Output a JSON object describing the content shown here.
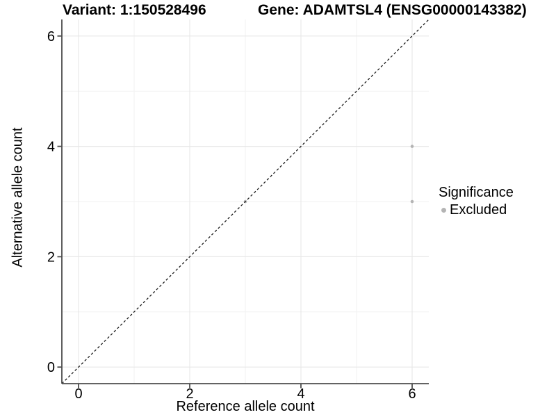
{
  "titles": {
    "variant": "Variant: 1:150528496",
    "gene": "Gene: ADAMTSL4 (ENSG00000143382)"
  },
  "legend": {
    "title": "Significance",
    "items": [
      {
        "label": "Excluded",
        "color": "#b4b4b4"
      }
    ]
  },
  "chart_data": {
    "type": "scatter",
    "title": "",
    "xlabel": "Reference allele count",
    "ylabel": "Alternative allele count",
    "xlim": [
      -0.3,
      6.3
    ],
    "ylim": [
      -0.3,
      6.3
    ],
    "x_ticks": [
      0,
      2,
      4,
      6
    ],
    "y_ticks": [
      0,
      2,
      4,
      6
    ],
    "x_minor_ticks": [
      1,
      3,
      5
    ],
    "y_minor_ticks": [
      1,
      3,
      5
    ],
    "grid": "major+minor",
    "legend_position": "right-middle",
    "series": [
      {
        "name": "Excluded",
        "color": "#b4b4b4",
        "points": [
          [
            3,
            3
          ],
          [
            6,
            3
          ],
          [
            6,
            4
          ]
        ]
      }
    ],
    "reference_line": {
      "slope": 1,
      "intercept": 0,
      "style": "dashed",
      "color": "#1a1a1a"
    }
  },
  "style": {
    "background": "#ffffff",
    "grid_major_color": "#e8e8e8",
    "grid_minor_color": "#f2f2f2",
    "axis_color": "#4d4d4d",
    "text_color": "#000000",
    "point_color": "#b4b4b4"
  }
}
